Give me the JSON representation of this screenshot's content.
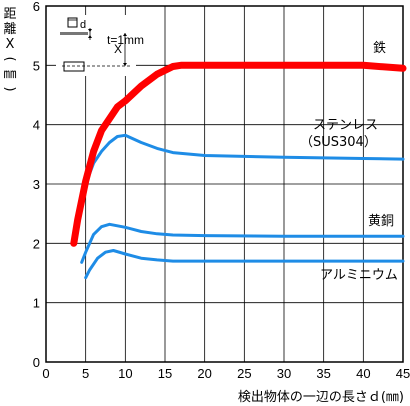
{
  "chart_data": {
    "type": "line",
    "xlabel": "検出物体の一辺の長さｄ(㎜)",
    "ylabel": [
      "距",
      "離",
      "X",
      "(",
      "㎜",
      ")"
    ],
    "xlim": [
      0,
      45
    ],
    "ylim": [
      0,
      6
    ],
    "x_ticks": [
      0,
      5,
      10,
      15,
      20,
      25,
      30,
      35,
      40,
      45
    ],
    "y_ticks": [
      0,
      1,
      2,
      3,
      4,
      5,
      6
    ],
    "grid": true,
    "inset": {
      "d_label": "d",
      "t_label": "t=1mm",
      "x_label": "X"
    },
    "series": [
      {
        "name": "鉄",
        "color": "#ff0000",
        "points": [
          [
            3.5,
            2.0
          ],
          [
            4,
            2.4
          ],
          [
            5,
            3.05
          ],
          [
            6,
            3.55
          ],
          [
            7,
            3.9
          ],
          [
            8,
            4.1
          ],
          [
            9,
            4.3
          ],
          [
            10,
            4.4
          ],
          [
            12,
            4.65
          ],
          [
            14,
            4.85
          ],
          [
            16,
            4.98
          ],
          [
            17,
            5.0
          ],
          [
            20,
            5.0
          ],
          [
            30,
            5.0
          ],
          [
            40,
            5.0
          ],
          [
            45,
            4.95
          ]
        ]
      },
      {
        "name": "ステンレス",
        "name_line2": "（SUS304）",
        "color": "#1e8ce6",
        "points": [
          [
            3.5,
            2.0
          ],
          [
            4,
            2.4
          ],
          [
            5,
            3.0
          ],
          [
            6,
            3.35
          ],
          [
            7,
            3.55
          ],
          [
            8,
            3.7
          ],
          [
            9,
            3.8
          ],
          [
            10,
            3.82
          ],
          [
            12,
            3.7
          ],
          [
            14,
            3.6
          ],
          [
            16,
            3.53
          ],
          [
            20,
            3.48
          ],
          [
            30,
            3.45
          ],
          [
            40,
            3.43
          ],
          [
            45,
            3.42
          ]
        ]
      },
      {
        "name": "黄銅",
        "color": "#1e8ce6",
        "points": [
          [
            4.5,
            1.68
          ],
          [
            5,
            1.85
          ],
          [
            6,
            2.15
          ],
          [
            7,
            2.28
          ],
          [
            8,
            2.32
          ],
          [
            10,
            2.27
          ],
          [
            12,
            2.2
          ],
          [
            14,
            2.16
          ],
          [
            16,
            2.14
          ],
          [
            20,
            2.13
          ],
          [
            30,
            2.12
          ],
          [
            45,
            2.12
          ]
        ]
      },
      {
        "name": "アルミニウム",
        "color": "#1e8ce6",
        "points": [
          [
            5,
            1.42
          ],
          [
            5.5,
            1.55
          ],
          [
            6.5,
            1.75
          ],
          [
            7.5,
            1.85
          ],
          [
            8.5,
            1.88
          ],
          [
            10,
            1.82
          ],
          [
            12,
            1.75
          ],
          [
            14,
            1.72
          ],
          [
            16,
            1.7
          ],
          [
            20,
            1.7
          ],
          [
            30,
            1.7
          ],
          [
            45,
            1.7
          ]
        ]
      }
    ]
  }
}
